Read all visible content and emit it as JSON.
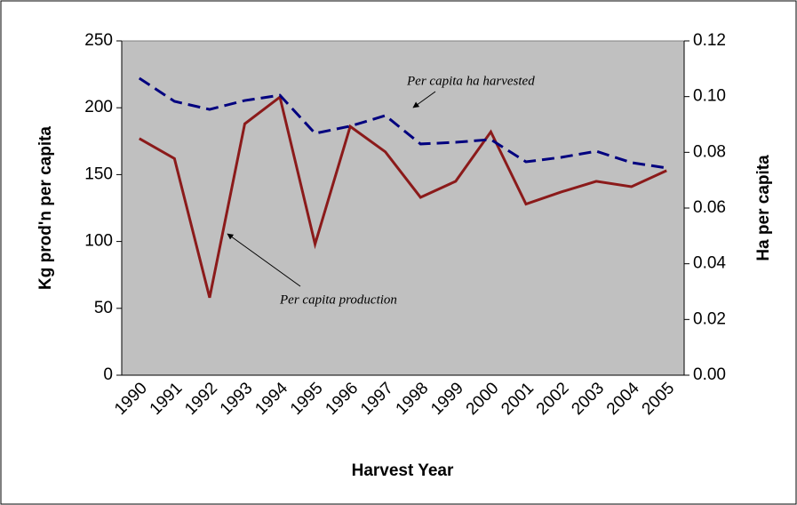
{
  "chart_data": {
    "type": "line",
    "x_label": "Harvest Year",
    "y_label": "Kg prod'n per capita",
    "y2_label": "Ha per capita",
    "categories": [
      "1990",
      "1991",
      "1992",
      "1993",
      "1994",
      "1995",
      "1996",
      "1997",
      "1998",
      "1999",
      "2000",
      "2001",
      "2002",
      "2003",
      "2004",
      "2005"
    ],
    "series": [
      {
        "name": "Per capita production",
        "color": "#8b1a1a",
        "dashed": false,
        "values": [
          177,
          162,
          58,
          188,
          208,
          98,
          186,
          167,
          133,
          145,
          182,
          128,
          137,
          145,
          141,
          153
        ]
      },
      {
        "name": "Per capita ha harvested",
        "color": "#00007f",
        "dashed": true,
        "axis": "y2",
        "values": [
          0.1066,
          0.0983,
          0.0954,
          0.0986,
          0.1005,
          0.0868,
          0.0894,
          0.0932,
          0.083,
          0.0836,
          0.0846,
          0.0766,
          0.0782,
          0.0804,
          0.0763,
          0.0744
        ]
      }
    ],
    "ylim": [
      0,
      250
    ],
    "yticks": [
      0,
      50,
      100,
      150,
      200,
      250
    ],
    "y2lim": [
      0,
      0.12
    ],
    "y2ticks": [
      {
        "value": 0,
        "label": "0.00"
      },
      0.02,
      0.04,
      0.06,
      0.08,
      {
        "value": 0.1,
        "label": "0.10"
      },
      0.12
    ],
    "plot_background": "#c0c0c0",
    "grid": false
  }
}
